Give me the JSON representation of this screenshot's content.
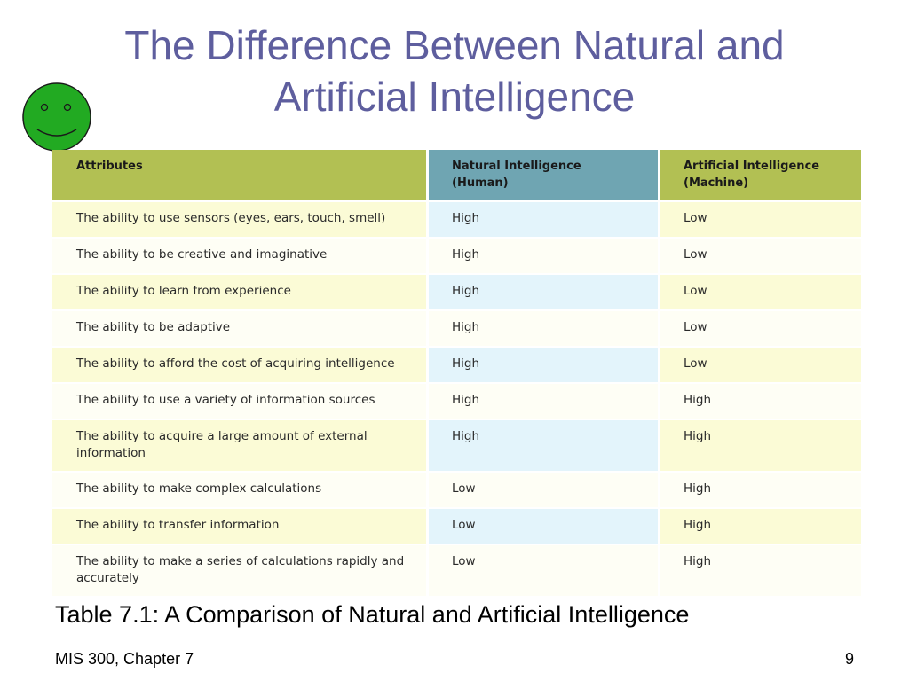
{
  "slide": {
    "title_line1": "The Difference Between Natural and",
    "title_line2": "Artificial Intelligence",
    "caption": "Table 7.1: A Comparison of Natural and Artificial Intelligence",
    "footer_left": "MIS 300, Chapter 7",
    "page_number": "9"
  },
  "icon": {
    "name": "smiley-face-icon",
    "color": "#22aa22"
  },
  "table": {
    "headers": {
      "attributes": "Attributes",
      "natural_line1": "Natural Intelligence",
      "natural_line2": "(Human)",
      "artificial_line1": "Artificial Intelligence",
      "artificial_line2": "(Machine)"
    },
    "rows": [
      {
        "attribute": "The ability to use sensors (eyes, ears, touch, smell)",
        "natural": "High",
        "artificial": "Low"
      },
      {
        "attribute": "The ability to be creative and imaginative",
        "natural": "High",
        "artificial": "Low"
      },
      {
        "attribute": "The ability to learn from experience",
        "natural": "High",
        "artificial": "Low"
      },
      {
        "attribute": "The ability to be adaptive",
        "natural": "High",
        "artificial": "Low"
      },
      {
        "attribute": "The ability to afford the cost of acquiring intelligence",
        "natural": "High",
        "artificial": "Low"
      },
      {
        "attribute": "The ability to use a variety of information sources",
        "natural": "High",
        "artificial": "High"
      },
      {
        "attribute": "The ability to acquire a large amount of external information",
        "natural": "High",
        "artificial": "High"
      },
      {
        "attribute": "The ability to make complex calculations",
        "natural": "Low",
        "artificial": "High"
      },
      {
        "attribute": "The ability to transfer information",
        "natural": "Low",
        "artificial": "High"
      },
      {
        "attribute": "The ability to make a series of calculations rapidly and accurately",
        "natural": "Low",
        "artificial": "High"
      }
    ],
    "colors": {
      "header_green": "#b2c053",
      "header_blue": "#6fa5b2",
      "row_yellow": "#fbfbd6",
      "row_light_blue": "#e3f4fb"
    }
  }
}
